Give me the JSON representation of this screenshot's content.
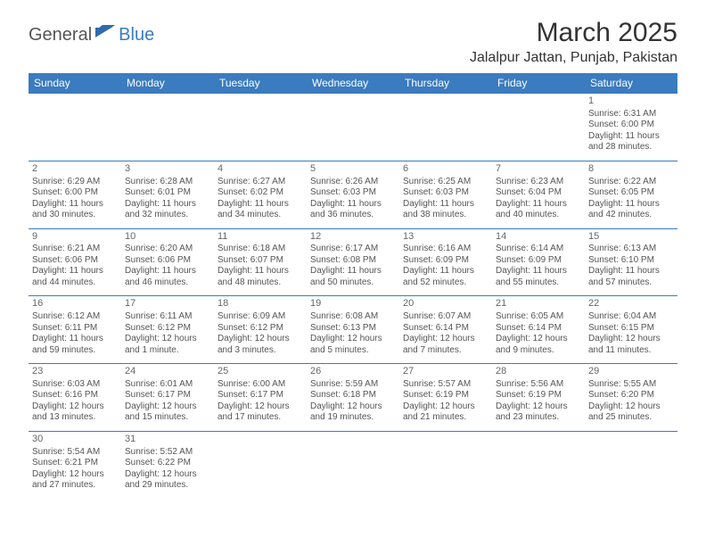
{
  "header": {
    "logo_part1": "General",
    "logo_part2": "Blue",
    "month_title": "March 2025",
    "location": "Jalalpur Jattan, Punjab, Pakistan"
  },
  "style": {
    "header_bg": "#3b7bbf",
    "header_text": "#ffffff",
    "border_color": "#3b7bbf",
    "text_color": "#555555",
    "daynum_color": "#666666",
    "title_fontsize": 30,
    "location_fontsize": 16,
    "dayheader_fontsize": 12,
    "cell_fontsize": 10
  },
  "day_headers": [
    "Sunday",
    "Monday",
    "Tuesday",
    "Wednesday",
    "Thursday",
    "Friday",
    "Saturday"
  ],
  "weeks": [
    [
      null,
      null,
      null,
      null,
      null,
      null,
      {
        "n": "1",
        "sr": "6:31 AM",
        "ss": "6:00 PM",
        "dl": "11 hours",
        "dm": "and 28 minutes."
      }
    ],
    [
      {
        "n": "2",
        "sr": "6:29 AM",
        "ss": "6:00 PM",
        "dl": "11 hours",
        "dm": "and 30 minutes."
      },
      {
        "n": "3",
        "sr": "6:28 AM",
        "ss": "6:01 PM",
        "dl": "11 hours",
        "dm": "and 32 minutes."
      },
      {
        "n": "4",
        "sr": "6:27 AM",
        "ss": "6:02 PM",
        "dl": "11 hours",
        "dm": "and 34 minutes."
      },
      {
        "n": "5",
        "sr": "6:26 AM",
        "ss": "6:03 PM",
        "dl": "11 hours",
        "dm": "and 36 minutes."
      },
      {
        "n": "6",
        "sr": "6:25 AM",
        "ss": "6:03 PM",
        "dl": "11 hours",
        "dm": "and 38 minutes."
      },
      {
        "n": "7",
        "sr": "6:23 AM",
        "ss": "6:04 PM",
        "dl": "11 hours",
        "dm": "and 40 minutes."
      },
      {
        "n": "8",
        "sr": "6:22 AM",
        "ss": "6:05 PM",
        "dl": "11 hours",
        "dm": "and 42 minutes."
      }
    ],
    [
      {
        "n": "9",
        "sr": "6:21 AM",
        "ss": "6:06 PM",
        "dl": "11 hours",
        "dm": "and 44 minutes."
      },
      {
        "n": "10",
        "sr": "6:20 AM",
        "ss": "6:06 PM",
        "dl": "11 hours",
        "dm": "and 46 minutes."
      },
      {
        "n": "11",
        "sr": "6:18 AM",
        "ss": "6:07 PM",
        "dl": "11 hours",
        "dm": "and 48 minutes."
      },
      {
        "n": "12",
        "sr": "6:17 AM",
        "ss": "6:08 PM",
        "dl": "11 hours",
        "dm": "and 50 minutes."
      },
      {
        "n": "13",
        "sr": "6:16 AM",
        "ss": "6:09 PM",
        "dl": "11 hours",
        "dm": "and 52 minutes."
      },
      {
        "n": "14",
        "sr": "6:14 AM",
        "ss": "6:09 PM",
        "dl": "11 hours",
        "dm": "and 55 minutes."
      },
      {
        "n": "15",
        "sr": "6:13 AM",
        "ss": "6:10 PM",
        "dl": "11 hours",
        "dm": "and 57 minutes."
      }
    ],
    [
      {
        "n": "16",
        "sr": "6:12 AM",
        "ss": "6:11 PM",
        "dl": "11 hours",
        "dm": "and 59 minutes."
      },
      {
        "n": "17",
        "sr": "6:11 AM",
        "ss": "6:12 PM",
        "dl": "12 hours",
        "dm": "and 1 minute."
      },
      {
        "n": "18",
        "sr": "6:09 AM",
        "ss": "6:12 PM",
        "dl": "12 hours",
        "dm": "and 3 minutes."
      },
      {
        "n": "19",
        "sr": "6:08 AM",
        "ss": "6:13 PM",
        "dl": "12 hours",
        "dm": "and 5 minutes."
      },
      {
        "n": "20",
        "sr": "6:07 AM",
        "ss": "6:14 PM",
        "dl": "12 hours",
        "dm": "and 7 minutes."
      },
      {
        "n": "21",
        "sr": "6:05 AM",
        "ss": "6:14 PM",
        "dl": "12 hours",
        "dm": "and 9 minutes."
      },
      {
        "n": "22",
        "sr": "6:04 AM",
        "ss": "6:15 PM",
        "dl": "12 hours",
        "dm": "and 11 minutes."
      }
    ],
    [
      {
        "n": "23",
        "sr": "6:03 AM",
        "ss": "6:16 PM",
        "dl": "12 hours",
        "dm": "and 13 minutes."
      },
      {
        "n": "24",
        "sr": "6:01 AM",
        "ss": "6:17 PM",
        "dl": "12 hours",
        "dm": "and 15 minutes."
      },
      {
        "n": "25",
        "sr": "6:00 AM",
        "ss": "6:17 PM",
        "dl": "12 hours",
        "dm": "and 17 minutes."
      },
      {
        "n": "26",
        "sr": "5:59 AM",
        "ss": "6:18 PM",
        "dl": "12 hours",
        "dm": "and 19 minutes."
      },
      {
        "n": "27",
        "sr": "5:57 AM",
        "ss": "6:19 PM",
        "dl": "12 hours",
        "dm": "and 21 minutes."
      },
      {
        "n": "28",
        "sr": "5:56 AM",
        "ss": "6:19 PM",
        "dl": "12 hours",
        "dm": "and 23 minutes."
      },
      {
        "n": "29",
        "sr": "5:55 AM",
        "ss": "6:20 PM",
        "dl": "12 hours",
        "dm": "and 25 minutes."
      }
    ],
    [
      {
        "n": "30",
        "sr": "5:54 AM",
        "ss": "6:21 PM",
        "dl": "12 hours",
        "dm": "and 27 minutes."
      },
      {
        "n": "31",
        "sr": "5:52 AM",
        "ss": "6:22 PM",
        "dl": "12 hours",
        "dm": "and 29 minutes."
      },
      null,
      null,
      null,
      null,
      null
    ]
  ],
  "labels": {
    "sunrise_prefix": "Sunrise: ",
    "sunset_prefix": "Sunset: ",
    "daylight_prefix": "Daylight: "
  }
}
